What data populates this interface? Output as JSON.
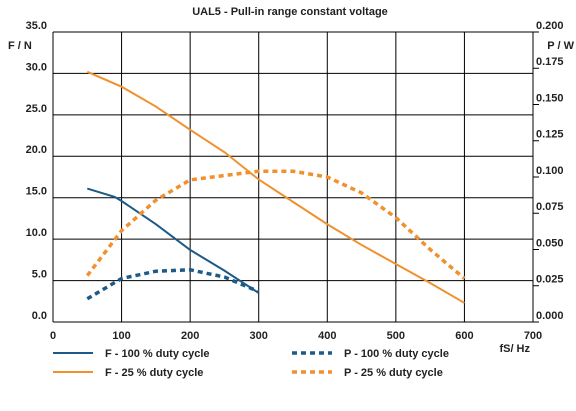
{
  "chart_data": {
    "type": "line",
    "title": "UAL5 - Pull-in range constant voltage",
    "y_label": "F / N",
    "y2_label": "P / W",
    "x_label": "fS/ Hz",
    "xlim": [
      0,
      700
    ],
    "xticks": [
      0,
      100,
      200,
      300,
      400,
      500,
      600,
      700
    ],
    "ylim": [
      0,
      35
    ],
    "yticks": [
      {
        "value": 0,
        "label": "0.0"
      },
      {
        "value": 5,
        "label": "5.0"
      },
      {
        "value": 10,
        "label": "10.0"
      },
      {
        "value": 15,
        "label": "15.0"
      },
      {
        "value": 20,
        "label": "20.0"
      },
      {
        "value": 25,
        "label": "25.0"
      },
      {
        "value": 30,
        "label": "30.0"
      },
      {
        "value": 35,
        "label": "35.0"
      }
    ],
    "y2lim": [
      0,
      0.2
    ],
    "y2ticks": [
      {
        "value": 0,
        "label": "0.000"
      },
      {
        "value": 0.025,
        "label": "0.025"
      },
      {
        "value": 0.05,
        "label": "0.050"
      },
      {
        "value": 0.075,
        "label": "0.075"
      },
      {
        "value": 0.1,
        "label": "0.100"
      },
      {
        "value": 0.125,
        "label": "0.125"
      },
      {
        "value": 0.15,
        "label": "0.150"
      },
      {
        "value": 0.175,
        "label": "0.175"
      },
      {
        "value": 0.2,
        "label": "0.200"
      }
    ],
    "grid": true,
    "series": [
      {
        "name": "F - 100 % duty cycle",
        "color": "#1d5a87",
        "style": "solid",
        "x": [
          50,
          90,
          100,
          150,
          200,
          250,
          300
        ],
        "values": [
          16.1,
          15.1,
          14.6,
          11.8,
          8.7,
          6.2,
          3.5
        ]
      },
      {
        "name": "F - 25 % duty cycle",
        "color": "#f0912e",
        "style": "solid",
        "x": [
          50,
          100,
          150,
          200,
          250,
          300,
          350,
          400,
          450,
          500,
          550,
          600
        ],
        "values": [
          30.2,
          28.4,
          26.0,
          23.2,
          20.5,
          17.2,
          14.5,
          11.8,
          9.3,
          7.0,
          4.7,
          2.3
        ]
      },
      {
        "name": "P - 100 % duty cycle",
        "color": "#1d5a87",
        "style": "dotted",
        "axis": "y2",
        "x": [
          50,
          100,
          150,
          200,
          250,
          300
        ],
        "values": [
          0.016,
          0.03,
          0.035,
          0.036,
          0.031,
          0.021
        ]
      },
      {
        "name": "P - 25 % duty cycle",
        "color": "#f0912e",
        "style": "dotted",
        "axis": "y2",
        "x": [
          50,
          100,
          150,
          200,
          250,
          300,
          350,
          400,
          450,
          500,
          550,
          600
        ],
        "values": [
          0.032,
          0.063,
          0.084,
          0.098,
          0.101,
          0.104,
          0.104,
          0.1,
          0.089,
          0.072,
          0.05,
          0.03
        ]
      }
    ]
  }
}
